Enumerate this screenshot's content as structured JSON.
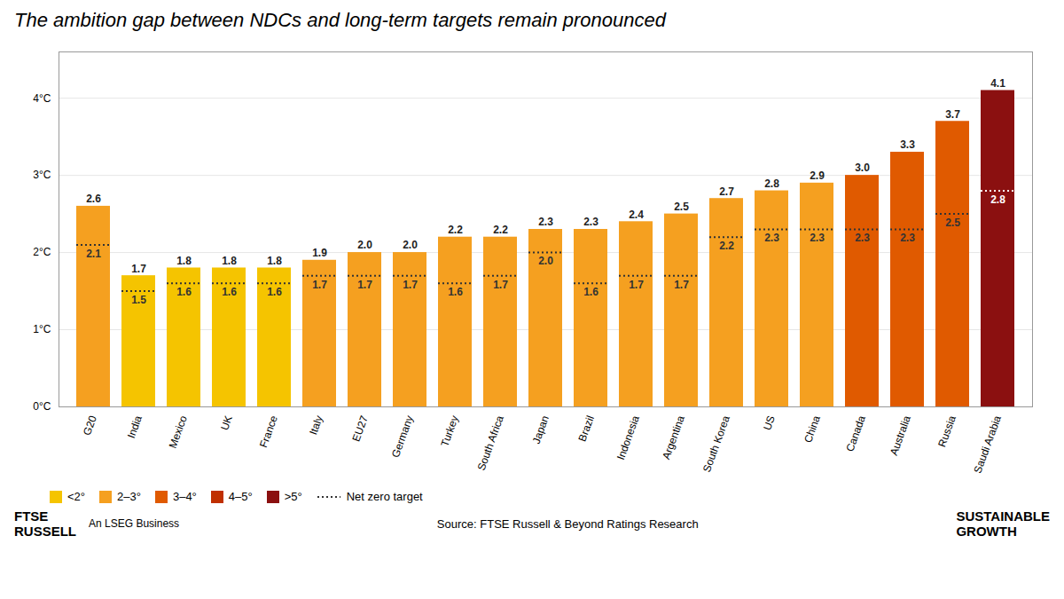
{
  "chart_data": {
    "type": "bar",
    "title": "The ambition gap between NDCs and long-term targets remain pronounced",
    "categories": [
      "G20",
      "India",
      "Mexico",
      "UK",
      "France",
      "Italy",
      "EU27",
      "Germany",
      "Turkey",
      "South Africa",
      "Japan",
      "Brazil",
      "Indonesia",
      "Argentina",
      "South Korea",
      "US",
      "China",
      "Canada",
      "Australia",
      "Russia",
      "Saudi Arabia"
    ],
    "values": [
      2.6,
      1.7,
      1.8,
      1.8,
      1.8,
      1.9,
      2.0,
      2.0,
      2.2,
      2.2,
      2.3,
      2.3,
      2.4,
      2.5,
      2.7,
      2.8,
      2.9,
      3.0,
      3.3,
      3.7,
      4.1
    ],
    "value_labels": [
      "2.6",
      "1.7",
      "1.8",
      "1.8",
      "1.8",
      "1.9",
      "2.0",
      "2.0",
      "2.2",
      "2.2",
      "2.3",
      "2.3",
      "2.4",
      "2.5",
      "2.7",
      "2.8",
      "2.9",
      "3.0",
      "3.3",
      "3.7",
      "4.1"
    ],
    "colors": [
      "#F5A020",
      "#F5C400",
      "#F5C400",
      "#F5C400",
      "#F5C400",
      "#F5A020",
      "#F5A020",
      "#F5A020",
      "#F5A020",
      "#F5A020",
      "#F5A020",
      "#F5A020",
      "#F5A020",
      "#F5A020",
      "#F5A020",
      "#F5A020",
      "#F5A020",
      "#E05A00",
      "#E05A00",
      "#E05A00",
      "#8B1010"
    ],
    "data_labels": true,
    "net_zero": {
      "name": "Net zero target",
      "color": "#333333",
      "line_style": "dotted",
      "values": [
        2.1,
        1.5,
        1.6,
        1.6,
        1.6,
        1.7,
        1.7,
        1.7,
        1.6,
        1.7,
        2.0,
        1.6,
        1.7,
        1.7,
        2.2,
        2.3,
        2.3,
        2.3,
        2.3,
        2.5,
        2.8
      ],
      "value_labels": [
        "2.1",
        "1.5",
        "1.6",
        "1.6",
        "1.6",
        "1.7",
        "1.7",
        "1.7",
        "1.6",
        "1.7",
        "2.0",
        "1.6",
        "1.7",
        "1.7",
        "2.2",
        "2.3",
        "2.3",
        "2.3",
        "2.3",
        "2.5",
        "2.8"
      ],
      "colors": [
        "#333333",
        "#333333",
        "#333333",
        "#333333",
        "#333333",
        "#333333",
        "#333333",
        "#333333",
        "#333333",
        "#333333",
        "#333333",
        "#333333",
        "#333333",
        "#333333",
        "#333333",
        "#333333",
        "#333333",
        "#333333",
        "#333333",
        "#333333",
        "#ffffff"
      ]
    },
    "legend": "bottom",
    "legend_entries": [
      {
        "name": "<2°",
        "color": "#F5C400"
      },
      {
        "name": "2–3°",
        "color": "#F5A020"
      },
      {
        "name": "3–4°",
        "color": "#E05A00"
      },
      {
        "name": "4–5°",
        "color": "#C03000"
      },
      {
        "name": ">5°",
        "color": "#8B1010"
      }
    ],
    "ylim": [
      0,
      4.6
    ],
    "yticks": [
      {
        "value": 0,
        "label": "0°C"
      },
      {
        "value": 1,
        "label": "1°C"
      },
      {
        "value": 2,
        "label": "2°C"
      },
      {
        "value": 3,
        "label": "3°C"
      },
      {
        "value": 4,
        "label": "4°C"
      }
    ],
    "grid": true,
    "annotations": [
      "Source: FTSE Russell & Beyond Ratings Research",
      "FTSE\nRUSSELL",
      "An LSEG Business",
      "SUSTAINABLE\nGROWTH"
    ]
  }
}
